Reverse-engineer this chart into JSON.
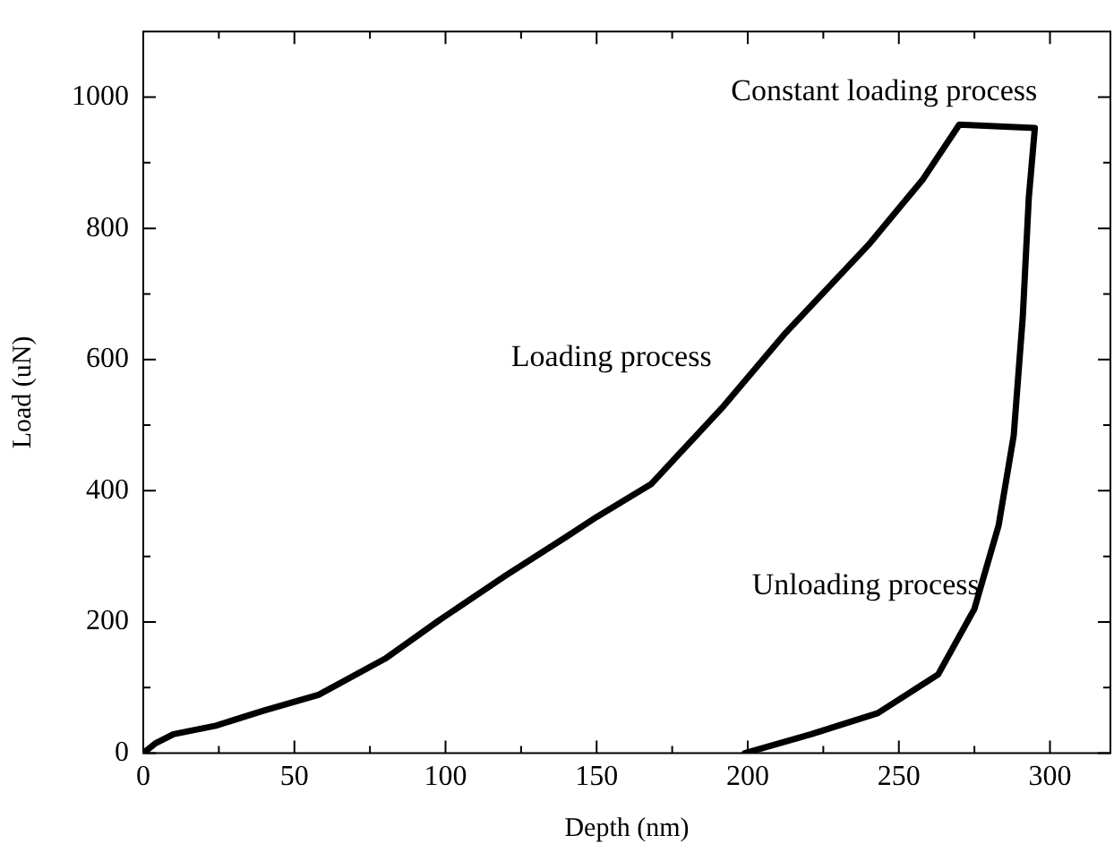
{
  "chart_data": {
    "type": "line",
    "xlabel": "Depth (nm)",
    "ylabel": "Load (uN)",
    "x": [
      0,
      4,
      10,
      24,
      40,
      58,
      80,
      98,
      120,
      140,
      150,
      168,
      192,
      212,
      240,
      258,
      270,
      295,
      293,
      291,
      288,
      283,
      275,
      263,
      243,
      221,
      199
    ],
    "series": [
      {
        "color": "#000000",
        "values": [
          0,
          15,
          29,
          42,
          65,
          89,
          144,
          203,
          271,
          330,
          360,
          410,
          529,
          638,
          775,
          875,
          958,
          953,
          847,
          665,
          484,
          347,
          220,
          120,
          61,
          29,
          0
        ]
      }
    ],
    "xlim": [
      0,
      320
    ],
    "ylim": [
      0,
      1100
    ],
    "xticks": [
      0,
      {
        "value": 25,
        "label": null
      },
      50,
      {
        "value": 75,
        "label": null
      },
      100,
      {
        "value": 125,
        "label": null
      },
      150,
      {
        "value": 175,
        "label": null
      },
      200,
      {
        "value": 225,
        "label": null
      },
      250,
      {
        "value": 275,
        "label": null
      },
      300
    ],
    "yticks": [
      0,
      {
        "value": 100,
        "label": null
      },
      200,
      {
        "value": 300,
        "label": null
      },
      400,
      {
        "value": 500,
        "label": null
      },
      600,
      {
        "value": 700,
        "label": null
      },
      800,
      {
        "value": 900,
        "label": null
      },
      1000
    ],
    "annotations": [
      "Loading process",
      "Constant loading process",
      "Unloading process"
    ],
    "grid": false,
    "legend": false,
    "marker": "none",
    "line_style": "solid"
  }
}
